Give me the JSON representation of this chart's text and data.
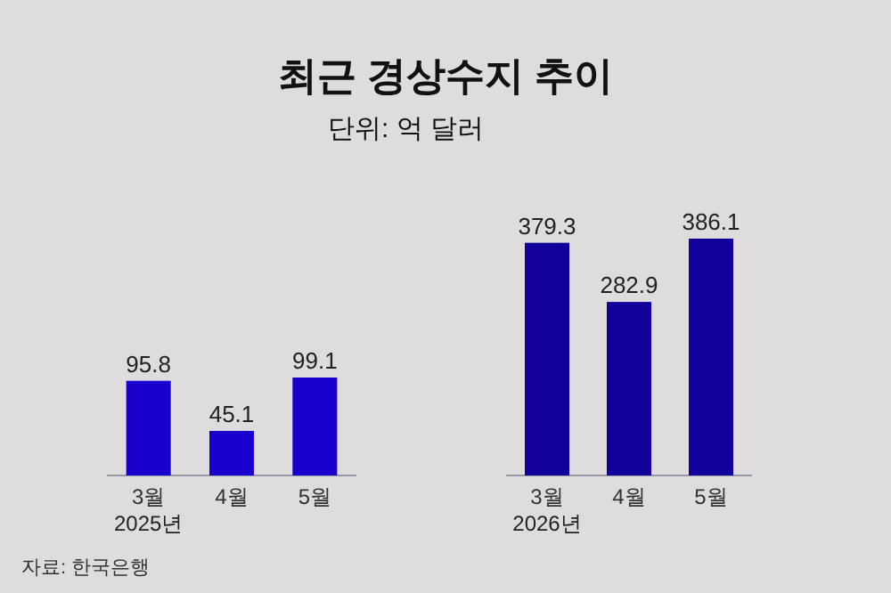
{
  "chart_data": [
    {
      "type": "bar",
      "title": "최근 경상수지 추이",
      "subtitle": "단위: 억 달러",
      "annotations": [
        "자료: 한국은행"
      ],
      "categories": [
        "3월",
        "4월",
        "5월"
      ],
      "xlabel": "2025년",
      "values": [
        95.8,
        45.1,
        99.1
      ],
      "color": "#1a00cc",
      "data_labels": true
    },
    {
      "type": "bar",
      "categories": [
        "3월",
        "4월",
        "5월"
      ],
      "xlabel": "2026년",
      "values": [
        379.3,
        282.9,
        386.1
      ],
      "color": "#12009a",
      "data_labels": true
    }
  ]
}
